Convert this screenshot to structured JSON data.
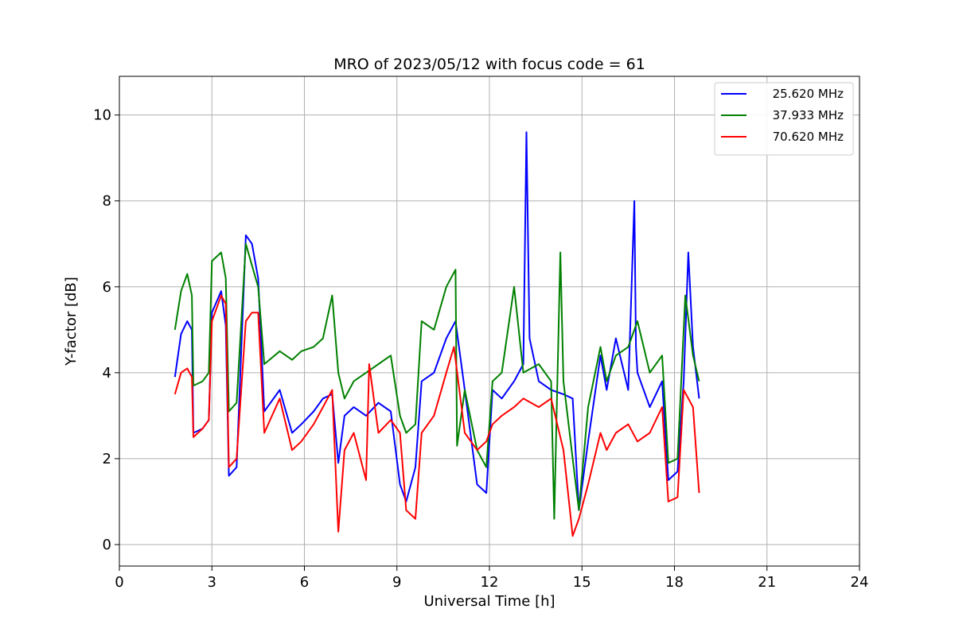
{
  "chart_data": {
    "type": "line",
    "title": "MRO of 2023/05/12 with focus code = 61",
    "xlabel": "Universal Time [h]",
    "ylabel": "Y-factor [dB]",
    "xlim": [
      0,
      24
    ],
    "ylim": [
      -0.5,
      10.9
    ],
    "xticks": [
      0,
      3,
      6,
      9,
      12,
      15,
      18,
      21,
      24
    ],
    "yticks": [
      0,
      2,
      4,
      6,
      8,
      10
    ],
    "grid": true,
    "legend_position": "top-right",
    "series": [
      {
        "name": "25.620 MHz",
        "color": "#0000ff",
        "x": [
          1.8,
          2.0,
          2.2,
          2.35,
          2.4,
          2.7,
          2.9,
          3.0,
          3.3,
          3.45,
          3.55,
          3.8,
          4.1,
          4.3,
          4.5,
          4.7,
          5.2,
          5.6,
          5.9,
          6.3,
          6.6,
          6.9,
          7.1,
          7.3,
          7.6,
          8.0,
          8.4,
          8.8,
          9.1,
          9.3,
          9.6,
          9.8,
          10.2,
          10.6,
          10.9,
          11.2,
          11.6,
          11.9,
          12.1,
          12.4,
          12.8,
          13.1,
          13.2,
          13.3,
          13.6,
          14.0,
          14.4,
          14.7,
          14.9,
          15.2,
          15.6,
          15.8,
          16.1,
          16.5,
          16.7,
          16.75,
          16.8,
          17.2,
          17.6,
          17.8,
          18.1,
          18.3,
          18.45,
          18.6,
          18.8
        ],
        "y": [
          3.9,
          4.9,
          5.2,
          5.0,
          2.6,
          2.7,
          2.9,
          5.4,
          5.9,
          5.1,
          1.6,
          1.8,
          7.2,
          7.0,
          6.2,
          3.1,
          3.6,
          2.6,
          2.8,
          3.1,
          3.4,
          3.5,
          1.9,
          3.0,
          3.2,
          3.0,
          3.3,
          3.1,
          1.4,
          1.0,
          1.8,
          3.8,
          4.0,
          4.8,
          5.2,
          3.6,
          1.4,
          1.2,
          3.6,
          3.4,
          3.8,
          4.2,
          9.6,
          4.8,
          3.8,
          3.6,
          3.5,
          3.4,
          0.8,
          2.4,
          4.4,
          3.6,
          4.8,
          3.6,
          8.0,
          4.6,
          4.0,
          3.2,
          3.8,
          1.5,
          1.7,
          3.8,
          6.8,
          4.6,
          3.4
        ]
      },
      {
        "name": "37.933 MHz",
        "color": "#008000",
        "x": [
          1.8,
          2.0,
          2.2,
          2.35,
          2.4,
          2.7,
          2.9,
          3.0,
          3.3,
          3.45,
          3.55,
          3.8,
          4.1,
          4.3,
          4.5,
          4.7,
          5.2,
          5.6,
          5.9,
          6.3,
          6.6,
          6.9,
          7.1,
          7.3,
          7.6,
          8.0,
          8.4,
          8.8,
          9.1,
          9.3,
          9.6,
          9.8,
          10.2,
          10.6,
          10.9,
          10.95,
          11.2,
          11.6,
          11.9,
          12.1,
          12.4,
          12.8,
          13.1,
          13.6,
          14.0,
          14.1,
          14.3,
          14.4,
          14.7,
          14.9,
          15.2,
          15.6,
          15.8,
          16.1,
          16.5,
          16.8,
          17.2,
          17.6,
          17.8,
          18.1,
          18.35,
          18.6,
          18.8
        ],
        "y": [
          5.0,
          5.9,
          6.3,
          5.8,
          3.7,
          3.8,
          4.0,
          6.6,
          6.8,
          6.2,
          3.1,
          3.3,
          7.0,
          6.5,
          6.0,
          4.2,
          4.5,
          4.3,
          4.5,
          4.6,
          4.8,
          5.8,
          4.0,
          3.4,
          3.8,
          4.0,
          4.2,
          4.4,
          3.0,
          2.6,
          2.8,
          5.2,
          5.0,
          6.0,
          6.4,
          2.3,
          3.6,
          2.2,
          1.8,
          3.8,
          4.0,
          6.0,
          4.0,
          4.2,
          3.8,
          0.6,
          6.8,
          3.8,
          2.0,
          0.8,
          3.2,
          4.6,
          3.8,
          4.4,
          4.6,
          5.2,
          4.0,
          4.4,
          1.9,
          2.0,
          5.8,
          4.4,
          3.8
        ]
      },
      {
        "name": "70.620 MHz",
        "color": "#ff0000",
        "x": [
          1.8,
          2.0,
          2.2,
          2.35,
          2.4,
          2.7,
          2.9,
          3.0,
          3.3,
          3.45,
          3.55,
          3.8,
          4.1,
          4.3,
          4.5,
          4.7,
          5.2,
          5.6,
          5.9,
          6.3,
          6.6,
          6.9,
          7.1,
          7.3,
          7.6,
          8.0,
          8.1,
          8.4,
          8.8,
          9.1,
          9.3,
          9.6,
          9.8,
          10.2,
          10.6,
          10.85,
          11.2,
          11.6,
          11.9,
          12.1,
          12.4,
          12.8,
          13.1,
          13.6,
          14.0,
          14.4,
          14.7,
          14.9,
          15.2,
          15.6,
          15.8,
          16.1,
          16.5,
          16.8,
          17.2,
          17.6,
          17.8,
          18.1,
          18.3,
          18.6,
          18.8
        ],
        "y": [
          3.5,
          4.0,
          4.1,
          3.9,
          2.5,
          2.7,
          2.9,
          5.2,
          5.8,
          5.6,
          1.8,
          2.0,
          5.2,
          5.4,
          5.4,
          2.6,
          3.4,
          2.2,
          2.4,
          2.8,
          3.2,
          3.6,
          0.3,
          2.2,
          2.6,
          1.5,
          4.2,
          2.6,
          2.9,
          2.6,
          0.8,
          0.6,
          2.6,
          3.0,
          4.0,
          4.6,
          2.6,
          2.2,
          2.4,
          2.8,
          3.0,
          3.2,
          3.4,
          3.2,
          3.4,
          2.2,
          0.2,
          0.6,
          1.4,
          2.6,
          2.2,
          2.6,
          2.8,
          2.4,
          2.6,
          3.2,
          1.0,
          1.1,
          3.6,
          3.2,
          1.2
        ]
      }
    ]
  }
}
